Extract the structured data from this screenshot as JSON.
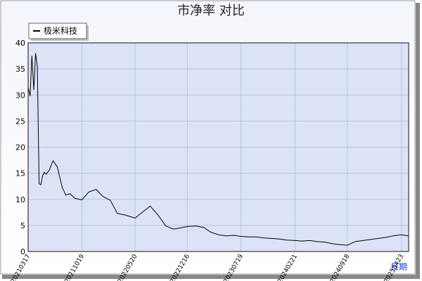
{
  "chart_data": {
    "type": "line",
    "title": "市净率  对比",
    "xlabel": "日期",
    "ylabel": "",
    "ylim": [
      0,
      40
    ],
    "yticks": [
      0,
      5,
      10,
      15,
      20,
      25,
      30,
      35,
      40
    ],
    "xticks": [
      "20210317",
      "20211019",
      "20220520",
      "20221216",
      "20230719",
      "20240221",
      "20240918",
      "20250423"
    ],
    "grid": true,
    "legend": {
      "position": "top-left"
    },
    "colors": {
      "plot_bg": "#dce3f7",
      "grid": "#b8c4e0",
      "frame": "#111111",
      "series": "#000000",
      "xlabel": "#1a3cc9"
    },
    "series": [
      {
        "name": "极米科技",
        "x": [
          "20210317",
          "20210325",
          "20210401",
          "20210409",
          "20210416",
          "20210423",
          "20210430",
          "20210507",
          "20210514",
          "20210521",
          "20210528",
          "20210610",
          "20210625",
          "20210712",
          "20210801",
          "20210815",
          "20210901",
          "20210920",
          "20211019",
          "20211115",
          "20211215",
          "20220110",
          "20220210",
          "20220310",
          "20220410",
          "20220520",
          "20220620",
          "20220720",
          "20220820",
          "20220920",
          "20221020",
          "20221116",
          "20221216",
          "20230120",
          "20230220",
          "20230320",
          "20230420",
          "20230520",
          "20230620",
          "20230719",
          "20230820",
          "20230920",
          "20231020",
          "20231120",
          "20231220",
          "20240120",
          "20240221",
          "20240320",
          "20240420",
          "20240520",
          "20240620",
          "20240720",
          "20240820",
          "20240918",
          "20241020",
          "20241120",
          "20241220",
          "20250120",
          "20250220",
          "20250320",
          "20250423",
          "20250520"
        ],
        "values": [
          31.5,
          29.8,
          37.5,
          31.0,
          38.0,
          35.5,
          13.0,
          12.8,
          14.5,
          15.2,
          14.8,
          15.6,
          17.4,
          16.2,
          12.3,
          10.8,
          11.1,
          10.2,
          9.9,
          11.4,
          11.9,
          10.6,
          9.8,
          7.3,
          7.0,
          6.4,
          7.6,
          8.7,
          7.0,
          4.9,
          4.3,
          4.5,
          4.8,
          4.9,
          4.6,
          3.7,
          3.2,
          3.0,
          3.1,
          2.9,
          2.8,
          2.8,
          2.6,
          2.5,
          2.4,
          2.2,
          2.1,
          2.0,
          2.1,
          1.9,
          1.8,
          1.5,
          1.3,
          1.2,
          1.9,
          2.1,
          2.3,
          2.5,
          2.7,
          3.0,
          3.2,
          3.0
        ]
      }
    ]
  }
}
